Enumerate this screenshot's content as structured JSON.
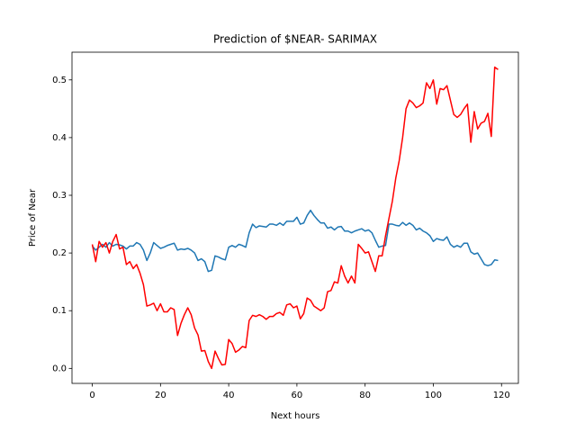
{
  "chart_data": {
    "type": "line",
    "title": "Prediction of $NEAR- SARIMAX",
    "x_label": "Next hours",
    "y_label": "Price of Near",
    "x": [
      0,
      1,
      2,
      3,
      4,
      5,
      6,
      7,
      8,
      9,
      10,
      11,
      12,
      13,
      14,
      15,
      16,
      17,
      18,
      19,
      20,
      21,
      22,
      23,
      24,
      25,
      26,
      27,
      28,
      29,
      30,
      31,
      32,
      33,
      34,
      35,
      36,
      37,
      38,
      39,
      40,
      41,
      42,
      43,
      44,
      45,
      46,
      47,
      48,
      49,
      50,
      51,
      52,
      53,
      54,
      55,
      56,
      57,
      58,
      59,
      60,
      61,
      62,
      63,
      64,
      65,
      66,
      67,
      68,
      69,
      70,
      71,
      72,
      73,
      74,
      75,
      76,
      77,
      78,
      79,
      80,
      81,
      82,
      83,
      84,
      85,
      86,
      87,
      88,
      89,
      90,
      91,
      92,
      93,
      94,
      95,
      96,
      97,
      98,
      99,
      100,
      101,
      102,
      103,
      104,
      105,
      106,
      107,
      108,
      109,
      110,
      111,
      112,
      113,
      114,
      115,
      116,
      117,
      118,
      119
    ],
    "series": [
      {
        "color": "#1f77b4",
        "values": [
          0.212,
          0.205,
          0.21,
          0.215,
          0.21,
          0.218,
          0.212,
          0.215,
          0.214,
          0.212,
          0.207,
          0.212,
          0.212,
          0.218,
          0.215,
          0.205,
          0.187,
          0.2,
          0.218,
          0.213,
          0.208,
          0.21,
          0.213,
          0.215,
          0.217,
          0.205,
          0.207,
          0.206,
          0.208,
          0.205,
          0.2,
          0.187,
          0.19,
          0.185,
          0.168,
          0.17,
          0.195,
          0.193,
          0.19,
          0.188,
          0.21,
          0.213,
          0.21,
          0.215,
          0.213,
          0.21,
          0.235,
          0.25,
          0.244,
          0.247,
          0.246,
          0.245,
          0.25,
          0.25,
          0.248,
          0.252,
          0.248,
          0.255,
          0.255,
          0.255,
          0.262,
          0.25,
          0.252,
          0.265,
          0.274,
          0.265,
          0.258,
          0.252,
          0.252,
          0.243,
          0.245,
          0.24,
          0.245,
          0.246,
          0.238,
          0.238,
          0.235,
          0.238,
          0.24,
          0.242,
          0.238,
          0.24,
          0.235,
          0.222,
          0.21,
          0.212,
          0.213,
          0.25,
          0.25,
          0.248,
          0.247,
          0.253,
          0.248,
          0.252,
          0.248,
          0.24,
          0.243,
          0.238,
          0.235,
          0.23,
          0.22,
          0.225,
          0.223,
          0.222,
          0.228,
          0.215,
          0.21,
          0.213,
          0.21,
          0.217,
          0.217,
          0.202,
          0.198,
          0.2,
          0.19,
          0.18,
          0.178,
          0.18,
          0.188,
          0.187
        ]
      },
      {
        "color": "#ff0000",
        "values": [
          0.215,
          0.185,
          0.22,
          0.21,
          0.218,
          0.2,
          0.22,
          0.232,
          0.207,
          0.21,
          0.18,
          0.185,
          0.173,
          0.18,
          0.165,
          0.145,
          0.108,
          0.11,
          0.113,
          0.1,
          0.112,
          0.098,
          0.098,
          0.105,
          0.102,
          0.057,
          0.078,
          0.093,
          0.105,
          0.093,
          0.07,
          0.058,
          0.03,
          0.031,
          0.012,
          0.0,
          0.03,
          0.017,
          0.006,
          0.007,
          0.05,
          0.043,
          0.028,
          0.032,
          0.038,
          0.036,
          0.083,
          0.092,
          0.09,
          0.093,
          0.09,
          0.085,
          0.09,
          0.09,
          0.095,
          0.097,
          0.092,
          0.11,
          0.112,
          0.105,
          0.108,
          0.086,
          0.095,
          0.122,
          0.118,
          0.108,
          0.104,
          0.1,
          0.105,
          0.133,
          0.135,
          0.15,
          0.148,
          0.178,
          0.16,
          0.148,
          0.16,
          0.148,
          0.215,
          0.208,
          0.2,
          0.202,
          0.185,
          0.168,
          0.195,
          0.195,
          0.23,
          0.26,
          0.29,
          0.33,
          0.36,
          0.4,
          0.45,
          0.465,
          0.46,
          0.452,
          0.455,
          0.46,
          0.495,
          0.485,
          0.5,
          0.458,
          0.485,
          0.483,
          0.49,
          0.465,
          0.44,
          0.435,
          0.44,
          0.45,
          0.458,
          0.392,
          0.445,
          0.415,
          0.425,
          0.428,
          0.442,
          0.402,
          0.522,
          0.518
        ]
      }
    ],
    "xlim": [
      -5.95,
      124.95
    ],
    "xticks": [
      0,
      20,
      40,
      60,
      80,
      100,
      120
    ],
    "ylim": [
      -0.026,
      0.548
    ],
    "yticks": [
      {
        "value": 0,
        "label": "0.0"
      },
      0.1,
      0.2,
      0.3,
      0.4,
      0.5
    ],
    "grid": false
  }
}
